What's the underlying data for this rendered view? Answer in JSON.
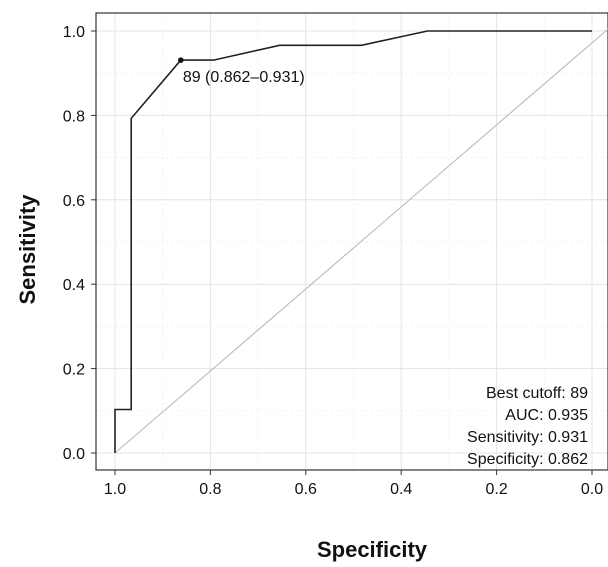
{
  "chart_data": {
    "type": "line",
    "title": "",
    "xlabel": "Specificity",
    "ylabel": "Sensitivity",
    "xlim": [
      1.0,
      0.0
    ],
    "ylim": [
      0.0,
      1.0
    ],
    "x_reversed": true,
    "grid": true,
    "x_ticks": [
      "1.0",
      "0.8",
      "0.6",
      "0.4",
      "0.2",
      "0.0"
    ],
    "y_ticks": [
      "0.0",
      "0.2",
      "0.4",
      "0.6",
      "0.8",
      "1.0"
    ],
    "series": [
      {
        "x": [
          1.0,
          1.0,
          0.966,
          0.966,
          0.862,
          0.793,
          0.655,
          0.483,
          0.345,
          0.0
        ],
        "y": [
          0.0,
          0.103,
          0.103,
          0.793,
          0.931,
          0.931,
          0.966,
          0.966,
          1.0,
          1.0
        ],
        "color": "#222222"
      }
    ],
    "reference_line": {
      "x": [
        1.0,
        0.0
      ],
      "y": [
        0.0,
        1.0
      ],
      "color": "#bbbbbb"
    },
    "best_point": {
      "x": 0.862,
      "y": 0.931,
      "label": "89 (0.862–0.931)"
    },
    "stats": [
      "Best cutoff: 89",
      "AUC: 0.935",
      "Sensitivity: 0.931",
      "Specificity: 0.862"
    ]
  }
}
